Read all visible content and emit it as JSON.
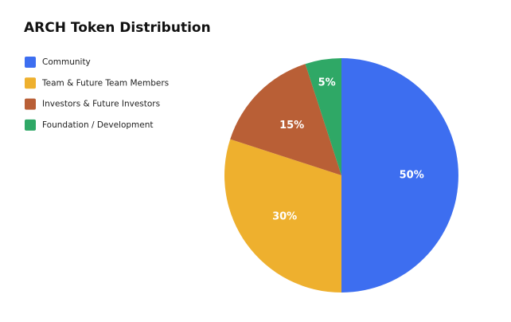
{
  "chart_data": {
    "type": "pie",
    "title": "ARCH Token Distribution",
    "categories": [
      "Community",
      "Team & Future Team Members",
      "Investors & Future Investors",
      "Foundation / Development"
    ],
    "values": [
      50,
      30,
      15,
      5
    ],
    "value_labels": [
      "50%",
      "30%",
      "15%",
      "5%"
    ],
    "colors": [
      "#3d6ef0",
      "#eeb02e",
      "#b95f36",
      "#2fa866"
    ]
  }
}
